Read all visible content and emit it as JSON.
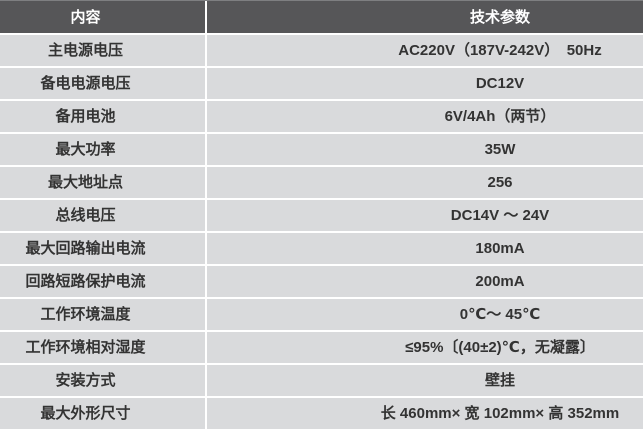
{
  "colors": {
    "header_bg": "#565658",
    "header_text": "#ffffff",
    "row_bg": "#d9dadc",
    "divider": "#ffffff",
    "text": "#333333",
    "top_line": "#7e7f81"
  },
  "table": {
    "header": {
      "col1": "内容",
      "col2": "技术参数"
    },
    "rows": [
      {
        "label": "主电源电压",
        "value": "AC220V（187V-242V）　50Hz"
      },
      {
        "label": "备电电源电压",
        "value": "DC12V"
      },
      {
        "label": "备用电池",
        "value": "6V/4Ah（两节）"
      },
      {
        "label": "最大功率",
        "value": "35W"
      },
      {
        "label": "最大地址点",
        "value": "256"
      },
      {
        "label": "总线电压",
        "value": "DC14V ～ 24V"
      },
      {
        "label": "最大回路输出电流",
        "value": "180mA"
      },
      {
        "label": "回路短路保护电流",
        "value": "200mA"
      },
      {
        "label": "工作环境温度",
        "value": "0℃～ 45℃"
      },
      {
        "label": "工作环境相对湿度",
        "value": "≤95%〔(40±2)℃，无凝露〕"
      },
      {
        "label": "安装方式",
        "value": "壁挂"
      },
      {
        "label": "最大外形尺寸",
        "value": "长 460mm× 宽 102mm× 高 352mm"
      }
    ]
  }
}
